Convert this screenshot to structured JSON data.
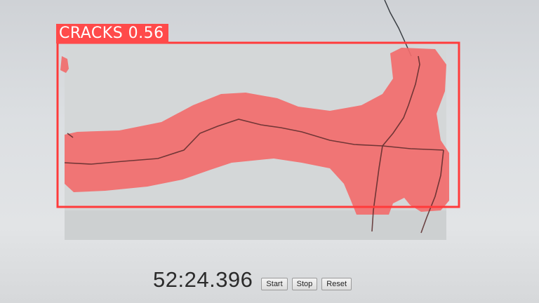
{
  "detection": {
    "label": "CRACKS",
    "score": "0.56",
    "color": "#ff4a4a"
  },
  "stopwatch": {
    "time": "52:24.396",
    "start_label": "Start",
    "stop_label": "Stop",
    "reset_label": "Reset"
  }
}
